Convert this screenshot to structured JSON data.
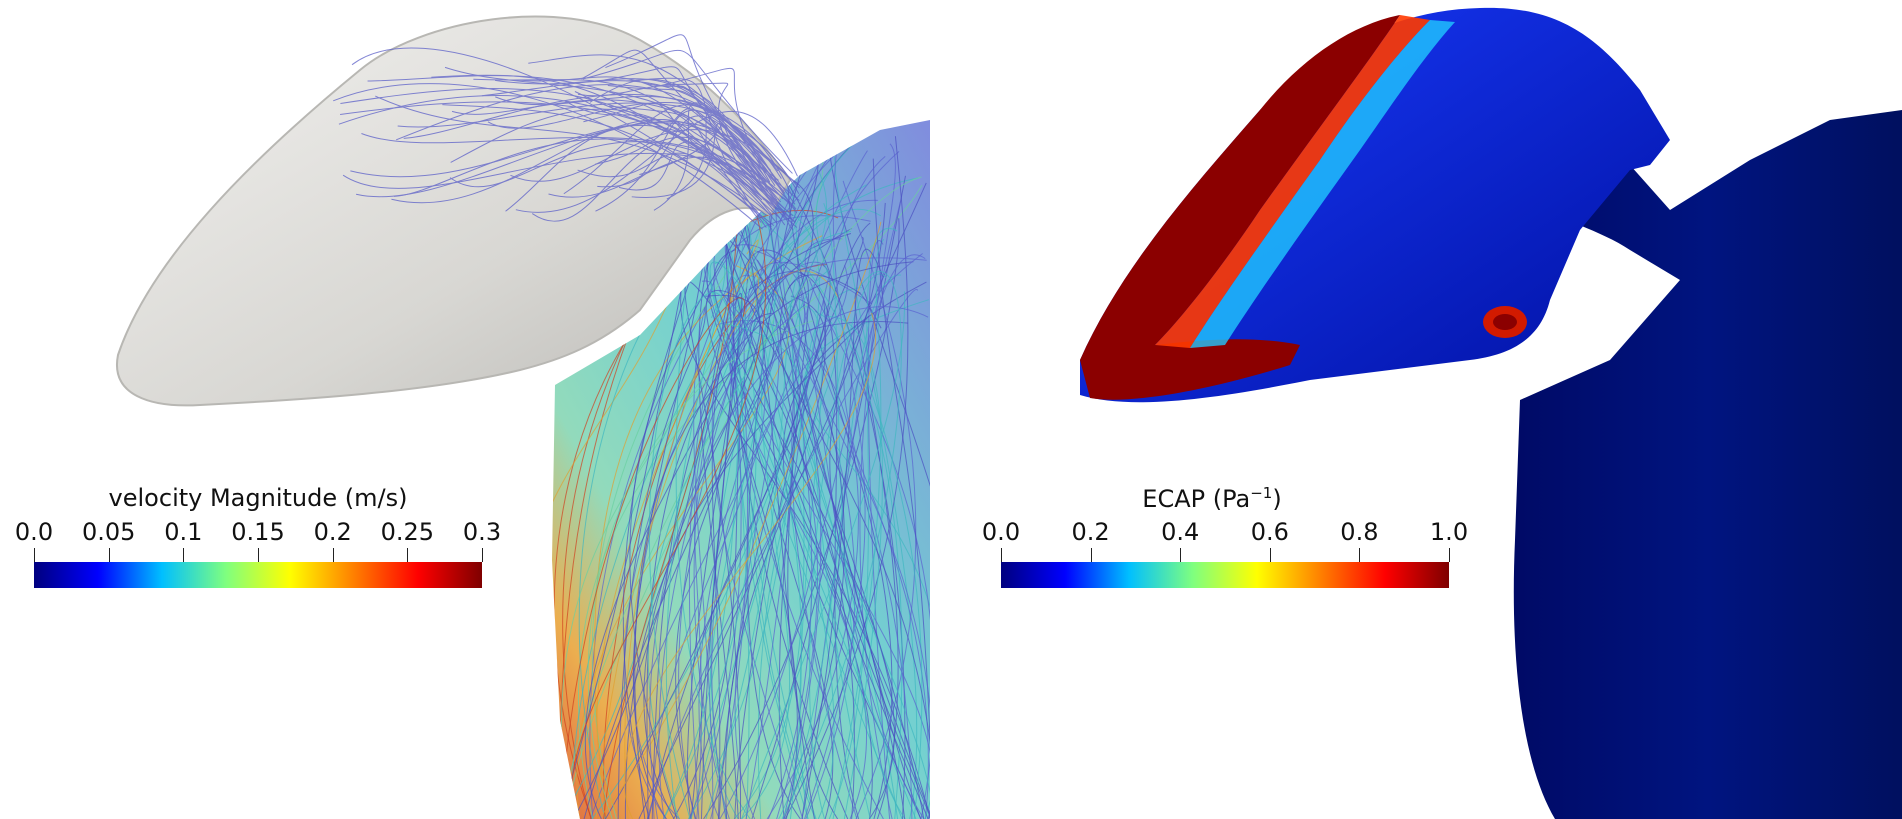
{
  "left_panel": {
    "colorbar": {
      "title": "velocity Magnitude (m/s)",
      "ticks": [
        "0.0",
        "0.05",
        "0.1",
        "0.15",
        "0.2",
        "0.25",
        "0.3"
      ],
      "range": [
        0.0,
        0.3
      ]
    }
  },
  "right_panel": {
    "colorbar": {
      "title_main": "ECAP (Pa",
      "title_sup": "−1",
      "title_close": ")",
      "ticks": [
        "0.0",
        "0.2",
        "0.4",
        "0.6",
        "0.8",
        "1.0"
      ],
      "range": [
        0.0,
        1.0
      ]
    }
  },
  "colormap": [
    "#00007f",
    "#0000ff",
    "#00bfff",
    "#7fff7f",
    "#ffff00",
    "#ff7f00",
    "#ff0000",
    "#7f0000"
  ]
}
